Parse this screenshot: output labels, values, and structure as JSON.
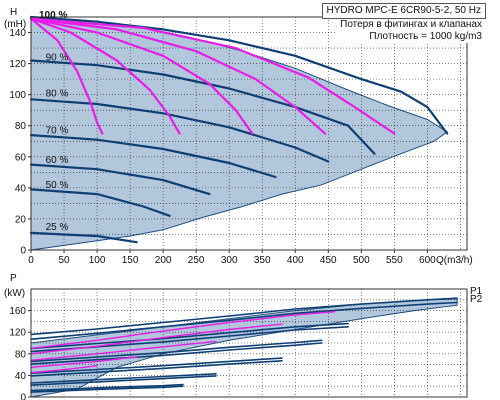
{
  "info": {
    "title": "HYDRO MPC-E 6CR90-5-2, 50 Hz",
    "note_line1": "Потеря в фитингах и клапанах",
    "note_line2": "Плотность = 1000 kg/m3"
  },
  "colors": {
    "envelope": "#b3c7dc",
    "envelope_edge": "#1f4f82",
    "speed_curve": "#0d3f75",
    "system_curve": "#e61ee6",
    "grid": "#000000"
  },
  "chart_data": [
    {
      "type": "line",
      "ylabel": "H",
      "yunit": "(mH)",
      "xlabel": "Q(m3/h)",
      "xlim": [
        0,
        660
      ],
      "ylim": [
        0,
        150
      ],
      "xticks": [
        "0",
        "50",
        "100",
        "150",
        "200",
        "250",
        "300",
        "350",
        "400",
        "450",
        "500",
        "550",
        "600"
      ],
      "yticks": [
        "0",
        "20",
        "40",
        "60",
        "80",
        "100",
        "120",
        "140"
      ],
      "grid": true,
      "envelope": {
        "upper": [
          [
            0,
            150
          ],
          [
            80,
            148
          ],
          [
            160,
            144
          ],
          [
            240,
            137
          ],
          [
            320,
            128
          ],
          [
            400,
            117
          ],
          [
            480,
            103
          ],
          [
            540,
            93
          ],
          [
            600,
            84
          ],
          [
            630,
            76
          ]
        ],
        "lower": [
          [
            610,
            70
          ],
          [
            560,
            62
          ],
          [
            500,
            52
          ],
          [
            440,
            42
          ],
          [
            380,
            36
          ],
          [
            320,
            28
          ],
          [
            260,
            21
          ],
          [
            200,
            13
          ],
          [
            150,
            9
          ],
          [
            100,
            6
          ],
          [
            0,
            0
          ]
        ]
      },
      "speed_labels": [
        {
          "text": "100 %",
          "q": 0,
          "h": 150
        },
        {
          "text": "90 %",
          "q": 10,
          "h": 120
        },
        {
          "text": "80 %",
          "q": 10,
          "h": 97
        },
        {
          "text": "70 %",
          "q": 10,
          "h": 73
        },
        {
          "text": "60 %",
          "q": 10,
          "h": 54
        },
        {
          "text": "50 %",
          "q": 10,
          "h": 38
        },
        {
          "text": "25 %",
          "q": 10,
          "h": 11
        }
      ],
      "speed_series": [
        {
          "values": [
            [
              0,
              150
            ],
            [
              100,
              147
            ],
            [
              200,
              142
            ],
            [
              300,
              135
            ],
            [
              400,
              125
            ],
            [
              500,
              110
            ],
            [
              560,
              102
            ],
            [
              600,
              92
            ],
            [
              630,
              75
            ]
          ]
        },
        {
          "values": [
            [
              0,
              122
            ],
            [
              100,
              119
            ],
            [
              200,
              113
            ],
            [
              300,
              104
            ],
            [
              400,
              92
            ],
            [
              480,
              80
            ],
            [
              520,
              62
            ]
          ]
        },
        {
          "values": [
            [
              0,
              97
            ],
            [
              100,
              94
            ],
            [
              200,
              88
            ],
            [
              300,
              79
            ],
            [
              400,
              66
            ],
            [
              450,
              57
            ]
          ]
        },
        {
          "values": [
            [
              0,
              74
            ],
            [
              100,
              71
            ],
            [
              200,
              65
            ],
            [
              300,
              56
            ],
            [
              370,
              47
            ]
          ]
        },
        {
          "values": [
            [
              0,
              55
            ],
            [
              100,
              52
            ],
            [
              200,
              45
            ],
            [
              270,
              36
            ]
          ]
        },
        {
          "values": [
            [
              0,
              39
            ],
            [
              100,
              36
            ],
            [
              170,
              28
            ],
            [
              210,
              22
            ]
          ]
        },
        {
          "values": [
            [
              0,
              11
            ],
            [
              50,
              10
            ],
            [
              100,
              9
            ],
            [
              160,
              5
            ]
          ]
        }
      ],
      "system_series": [
        {
          "values": [
            [
              0,
              149
            ],
            [
              40,
              135
            ],
            [
              70,
              115
            ],
            [
              90,
              95
            ],
            [
              100,
              82
            ],
            [
              108,
              75
            ]
          ]
        },
        {
          "values": [
            [
              0,
              149
            ],
            [
              60,
              140
            ],
            [
              130,
              122
            ],
            [
              180,
              103
            ],
            [
              210,
              86
            ],
            [
              225,
              75
            ]
          ]
        },
        {
          "values": [
            [
              0,
              149
            ],
            [
              100,
              140
            ],
            [
              200,
              125
            ],
            [
              270,
              107
            ],
            [
              310,
              90
            ],
            [
              335,
              75
            ]
          ]
        },
        {
          "values": [
            [
              0,
              149
            ],
            [
              130,
              142
            ],
            [
              250,
              128
            ],
            [
              340,
              110
            ],
            [
              400,
              92
            ],
            [
              445,
              75
            ]
          ]
        },
        {
          "values": [
            [
              0,
              149
            ],
            [
              170,
              143
            ],
            [
              310,
              130
            ],
            [
              420,
              111
            ],
            [
              490,
              92
            ],
            [
              550,
              75
            ]
          ]
        }
      ]
    },
    {
      "type": "line",
      "ylabel": "P",
      "yunit": "(kW)",
      "xlim": [
        0,
        660
      ],
      "ylim": [
        0,
        200
      ],
      "yticks": [
        "0",
        "40",
        "80",
        "120",
        "160"
      ],
      "grid": true,
      "end_labels": [
        "P1",
        "P2"
      ],
      "envelope": {
        "upper": [
          [
            0,
            100
          ],
          [
            100,
            115
          ],
          [
            200,
            130
          ],
          [
            300,
            145
          ],
          [
            400,
            160
          ],
          [
            500,
            172
          ],
          [
            600,
            180
          ],
          [
            645,
            182
          ]
        ],
        "lower": [
          [
            645,
            170
          ],
          [
            580,
            160
          ],
          [
            500,
            145
          ],
          [
            400,
            125
          ],
          [
            300,
            105
          ],
          [
            200,
            80
          ],
          [
            130,
            55
          ],
          [
            100,
            35
          ],
          [
            70,
            15
          ],
          [
            0,
            0
          ]
        ]
      },
      "speed_series": [
        {
          "values": [
            [
              0,
              116
            ],
            [
              100,
              126
            ],
            [
              200,
              138
            ],
            [
              300,
              150
            ],
            [
              400,
              163
            ],
            [
              500,
              172
            ],
            [
              600,
              180
            ],
            [
              645,
              183
            ]
          ]
        },
        {
          "values": [
            [
              0,
              107
            ],
            [
              100,
              118
            ],
            [
              200,
              130
            ],
            [
              300,
              142
            ],
            [
              400,
              155
            ],
            [
              500,
              164
            ],
            [
              600,
              172
            ],
            [
              645,
              175
            ]
          ]
        },
        {
          "values": [
            [
              0,
              90
            ],
            [
              100,
              99
            ],
            [
              200,
              108
            ],
            [
              300,
              119
            ],
            [
              400,
              130
            ],
            [
              480,
              136
            ]
          ]
        },
        {
          "values": [
            [
              0,
              84
            ],
            [
              100,
              93
            ],
            [
              200,
              102
            ],
            [
              300,
              113
            ],
            [
              400,
              124
            ],
            [
              480,
              130
            ]
          ]
        },
        {
          "values": [
            [
              0,
              66
            ],
            [
              100,
              74
            ],
            [
              200,
              82
            ],
            [
              300,
              92
            ],
            [
              400,
              101
            ],
            [
              440,
              105
            ]
          ]
        },
        {
          "values": [
            [
              0,
              61
            ],
            [
              100,
              69
            ],
            [
              200,
              77
            ],
            [
              300,
              87
            ],
            [
              400,
              96
            ],
            [
              440,
              100
            ]
          ]
        },
        {
          "values": [
            [
              0,
              44
            ],
            [
              100,
              51
            ],
            [
              200,
              58
            ],
            [
              300,
              66
            ],
            [
              380,
              72
            ]
          ]
        },
        {
          "values": [
            [
              0,
              39
            ],
            [
              100,
              46
            ],
            [
              200,
              53
            ],
            [
              300,
              61
            ],
            [
              380,
              67
            ]
          ]
        },
        {
          "values": [
            [
              0,
              26
            ],
            [
              100,
              32
            ],
            [
              200,
              38
            ],
            [
              280,
              43
            ]
          ]
        },
        {
          "values": [
            [
              0,
              22
            ],
            [
              100,
              28
            ],
            [
              200,
              34
            ],
            [
              280,
              39
            ]
          ]
        },
        {
          "values": [
            [
              0,
              12
            ],
            [
              100,
              17
            ],
            [
              200,
              21
            ],
            [
              230,
              23
            ]
          ]
        },
        {
          "values": [
            [
              0,
              9
            ],
            [
              100,
              14
            ],
            [
              200,
              18
            ],
            [
              230,
              20
            ]
          ]
        }
      ],
      "system_series": [
        {
          "values": [
            [
              0,
              90
            ],
            [
              100,
              105
            ],
            [
              200,
              122
            ],
            [
              300,
              138
            ],
            [
              400,
              152
            ],
            [
              460,
              158
            ]
          ]
        },
        {
          "values": [
            [
              0,
              80
            ],
            [
              100,
              94
            ],
            [
              200,
              110
            ],
            [
              300,
              125
            ],
            [
              380,
              135
            ]
          ]
        },
        {
          "values": [
            [
              0,
              68
            ],
            [
              100,
              80
            ],
            [
              200,
              93
            ],
            [
              280,
              103
            ]
          ]
        },
        {
          "values": [
            [
              0,
              55
            ],
            [
              100,
              66
            ],
            [
              160,
              74
            ]
          ]
        },
        {
          "values": [
            [
              0,
              45
            ],
            [
              60,
              52
            ],
            [
              100,
              58
            ]
          ]
        }
      ]
    }
  ]
}
